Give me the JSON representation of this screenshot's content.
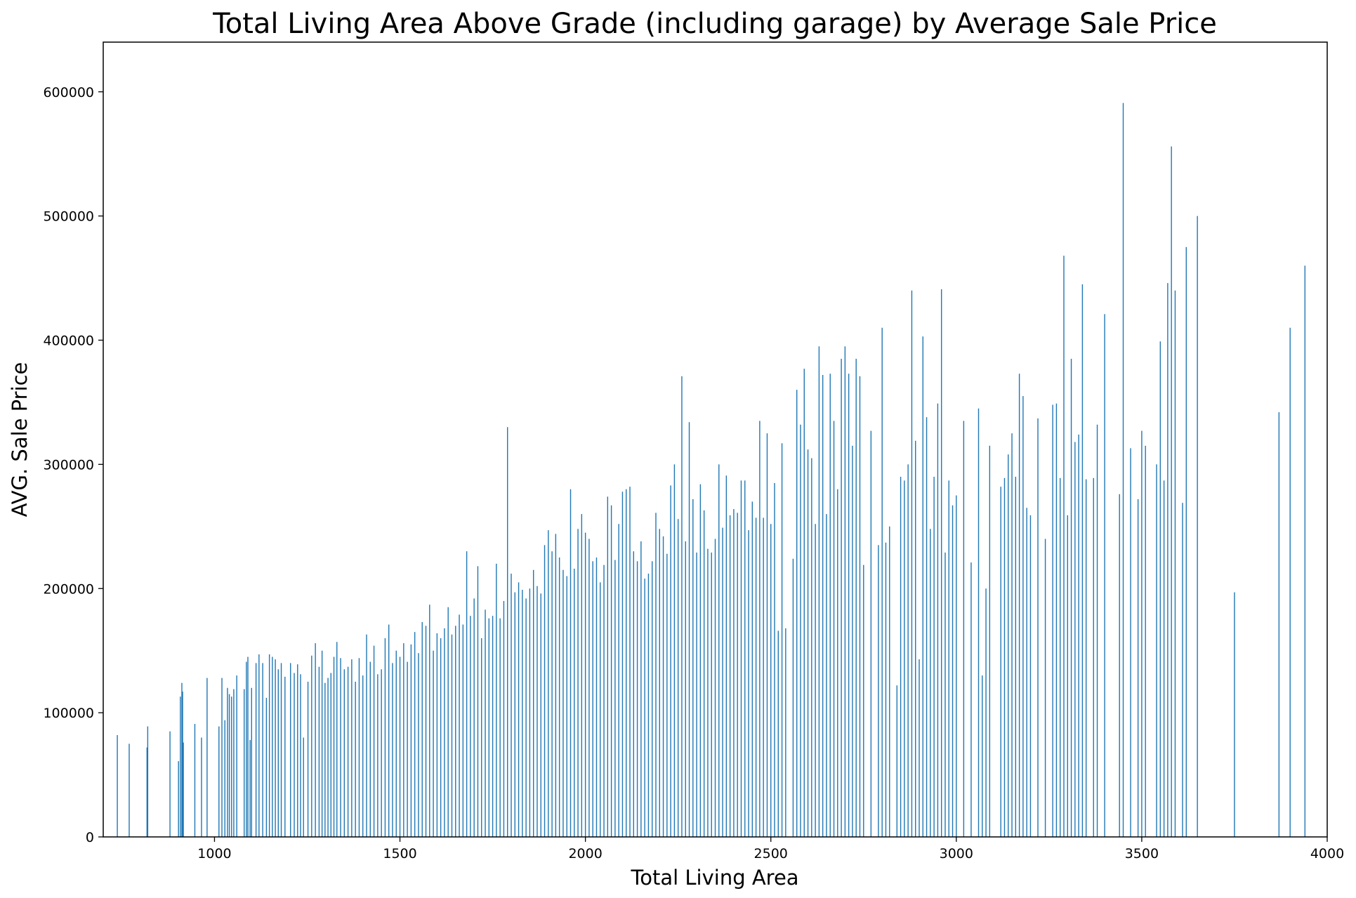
{
  "chart_data": {
    "type": "bar",
    "title": "Total Living Area Above Grade (including garage) by Average Sale Price",
    "xlabel": "Total Living Area",
    "ylabel": "AVG. Sale Price",
    "xlim": [
      700,
      4000
    ],
    "ylim": [
      0,
      640000
    ],
    "x_ticks": [
      1000,
      1500,
      2000,
      2500,
      3000,
      3500,
      4000
    ],
    "y_ticks": [
      0,
      100000,
      200000,
      300000,
      400000,
      500000,
      600000
    ],
    "grid": false,
    "legend": "none",
    "bar_color": "#1f77b4",
    "x": [
      738,
      770,
      818,
      820,
      880,
      903,
      908,
      912,
      914,
      916,
      947,
      965,
      980,
      1012,
      1020,
      1028,
      1035,
      1040,
      1046,
      1052,
      1060,
      1080,
      1086,
      1090,
      1096,
      1100,
      1112,
      1120,
      1130,
      1140,
      1148,
      1156,
      1164,
      1172,
      1180,
      1190,
      1205,
      1215,
      1224,
      1232,
      1240,
      1252,
      1262,
      1272,
      1282,
      1290,
      1298,
      1306,
      1314,
      1322,
      1330,
      1340,
      1350,
      1360,
      1370,
      1380,
      1390,
      1400,
      1410,
      1420,
      1430,
      1440,
      1450,
      1460,
      1470,
      1480,
      1490,
      1500,
      1510,
      1520,
      1530,
      1540,
      1550,
      1560,
      1570,
      1580,
      1590,
      1600,
      1610,
      1620,
      1630,
      1640,
      1650,
      1660,
      1670,
      1680,
      1690,
      1700,
      1710,
      1720,
      1730,
      1740,
      1750,
      1760,
      1770,
      1780,
      1790,
      1800,
      1810,
      1820,
      1830,
      1840,
      1850,
      1860,
      1870,
      1880,
      1890,
      1900,
      1910,
      1920,
      1930,
      1940,
      1950,
      1960,
      1970,
      1980,
      1990,
      2000,
      2010,
      2020,
      2030,
      2040,
      2050,
      2060,
      2070,
      2080,
      2090,
      2100,
      2110,
      2120,
      2130,
      2140,
      2150,
      2160,
      2170,
      2180,
      2190,
      2200,
      2210,
      2220,
      2230,
      2240,
      2250,
      2260,
      2270,
      2280,
      2290,
      2300,
      2310,
      2320,
      2330,
      2340,
      2350,
      2360,
      2370,
      2380,
      2390,
      2400,
      2410,
      2420,
      2430,
      2440,
      2450,
      2460,
      2470,
      2480,
      2490,
      2500,
      2510,
      2520,
      2530,
      2540,
      2560,
      2570,
      2580,
      2590,
      2600,
      2610,
      2620,
      2630,
      2640,
      2650,
      2660,
      2670,
      2680,
      2690,
      2700,
      2710,
      2720,
      2730,
      2740,
      2750,
      2770,
      2790,
      2800,
      2810,
      2820,
      2840,
      2850,
      2860,
      2870,
      2880,
      2890,
      2900,
      2910,
      2920,
      2930,
      2940,
      2950,
      2960,
      2970,
      2980,
      2990,
      3000,
      3020,
      3040,
      3060,
      3070,
      3080,
      3090,
      3120,
      3130,
      3140,
      3150,
      3160,
      3170,
      3180,
      3190,
      3200,
      3220,
      3240,
      3260,
      3270,
      3280,
      3290,
      3300,
      3310,
      3320,
      3330,
      3340,
      3350,
      3370,
      3380,
      3400,
      3440,
      3450,
      3470,
      3490,
      3500,
      3510,
      3540,
      3550,
      3560,
      3570,
      3580,
      3590,
      3610,
      3620,
      3650,
      3750,
      3870,
      3900,
      3940
    ],
    "values": [
      82000,
      75000,
      72000,
      89000,
      85000,
      61000,
      113000,
      124000,
      117000,
      76000,
      91000,
      80000,
      128000,
      89000,
      128000,
      94000,
      120000,
      115000,
      113000,
      119000,
      130000,
      119000,
      141000,
      145000,
      78000,
      120000,
      140000,
      147000,
      140000,
      112000,
      147000,
      145000,
      143000,
      135000,
      140000,
      129000,
      140000,
      132000,
      139000,
      131000,
      80000,
      125000,
      146000,
      156000,
      137000,
      150000,
      124000,
      128000,
      132000,
      145000,
      157000,
      144000,
      135000,
      137000,
      143000,
      125000,
      144000,
      130000,
      163000,
      141000,
      154000,
      131000,
      135000,
      160000,
      171000,
      140000,
      150000,
      145000,
      156000,
      141000,
      155000,
      165000,
      148000,
      173000,
      170000,
      187000,
      150000,
      164000,
      160000,
      168000,
      185000,
      163000,
      170000,
      179000,
      171000,
      230000,
      178000,
      192000,
      218000,
      160000,
      183000,
      176000,
      178000,
      220000,
      176000,
      190000,
      330000,
      212000,
      197000,
      205000,
      199000,
      192000,
      200000,
      215000,
      202000,
      196000,
      235000,
      247000,
      230000,
      244000,
      225000,
      215000,
      210000,
      280000,
      216000,
      248000,
      260000,
      245000,
      240000,
      222000,
      225000,
      205000,
      219000,
      274000,
      267000,
      223000,
      252000,
      278000,
      280000,
      282000,
      230000,
      222000,
      238000,
      208000,
      212000,
      222000,
      261000,
      248000,
      242000,
      228000,
      283000,
      300000,
      256000,
      371000,
      238000,
      334000,
      272000,
      229000,
      284000,
      263000,
      232000,
      229000,
      240000,
      300000,
      249000,
      291000,
      259000,
      264000,
      261000,
      287000,
      287000,
      247000,
      270000,
      257000,
      335000,
      257000,
      325000,
      252000,
      285000,
      166000,
      317000,
      168000,
      224000,
      360000,
      332000,
      377000,
      312000,
      305000,
      252000,
      395000,
      372000,
      260000,
      373000,
      335000,
      280000,
      385000,
      395000,
      373000,
      315000,
      385000,
      371000,
      219000,
      327000,
      235000,
      410000,
      237000,
      250000,
      122000,
      290000,
      287000,
      300000,
      440000,
      319000,
      143000,
      403000,
      338000,
      248000,
      290000,
      349000,
      441000,
      229000,
      287000,
      267000,
      275000,
      335000,
      221000,
      345000,
      130000,
      200000,
      315000,
      282000,
      289000,
      308000,
      325000,
      290000,
      373000,
      355000,
      265000,
      259000,
      337000,
      240000,
      348000,
      349000,
      289000,
      468000,
      259000,
      385000,
      318000,
      324000,
      445000,
      288000,
      289000,
      332000,
      421000,
      276000,
      591000,
      313000,
      272000,
      327000,
      315000,
      300000,
      399000,
      287000,
      446000,
      556000,
      440000,
      269000,
      475000,
      500000,
      197000,
      342000,
      410000,
      460000
    ]
  }
}
